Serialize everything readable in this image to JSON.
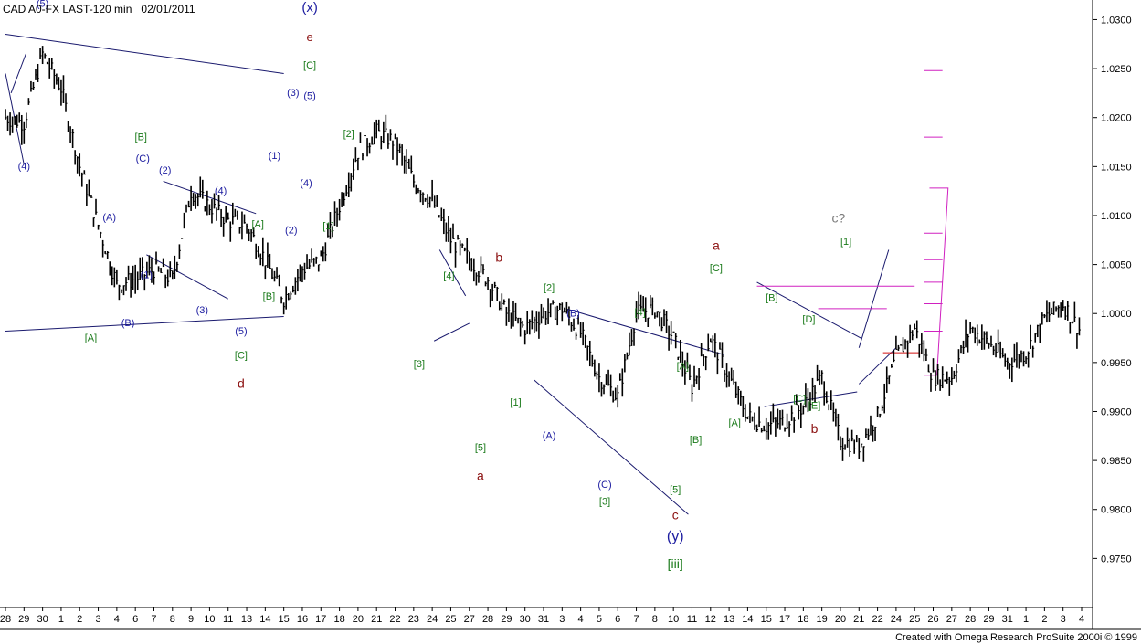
{
  "header": {
    "symbol_line": "CAD A0-FX LAST-120 min",
    "date": "02/01/2011"
  },
  "footer": {
    "credit": "Created with Omega Research ProSuite 2000i © 1999"
  },
  "colors": {
    "line": "#1a1a6e",
    "magenta": "#d020c0",
    "red": "#d01010",
    "green": "#1a7a1a",
    "blue": "#1c1ca0",
    "darkred": "#8b1010",
    "gray": "#7a7a7a",
    "price": "#000000"
  },
  "chart_data": {
    "type": "line",
    "ylim": [
      0.97,
      1.032
    ],
    "y_ticks": [
      "1.0300",
      "1.0250",
      "1.0200",
      "1.0150",
      "1.0100",
      "1.0050",
      "1.0000",
      "0.9950",
      "0.9900",
      "0.9850",
      "0.9800",
      "0.9750"
    ],
    "y_tick_values": [
      1.03,
      1.025,
      1.02,
      1.015,
      1.01,
      1.005,
      1.0,
      0.995,
      0.99,
      0.985,
      0.98,
      0.975
    ],
    "x_ticks": [
      "28",
      "29",
      "30",
      "1",
      "2",
      "3",
      "4",
      "6",
      "7",
      "8",
      "9",
      "10",
      "11",
      "13",
      "14",
      "15",
      "16",
      "17",
      "18",
      "20",
      "21",
      "22",
      "23",
      "24",
      "25",
      "27",
      "28",
      "29",
      "30",
      "31",
      "3",
      "4",
      "5",
      "6",
      "7",
      "8",
      "10",
      "11",
      "12",
      "13",
      "14",
      "15",
      "17",
      "18",
      "19",
      "20",
      "21",
      "22",
      "24",
      "25",
      "26",
      "27",
      "28",
      "29",
      "31",
      "1",
      "2",
      "3",
      "4"
    ],
    "x": [
      0,
      1,
      2,
      3,
      4,
      5,
      6,
      7,
      8,
      9,
      10,
      11,
      12,
      13,
      14,
      15,
      16,
      17,
      18,
      19,
      20,
      21,
      22,
      23,
      24,
      25,
      26,
      27,
      28,
      29,
      30,
      31,
      32,
      33,
      34,
      35,
      36,
      37,
      38,
      39,
      40,
      41,
      42,
      43,
      44,
      45,
      46,
      47,
      48,
      49,
      50,
      51,
      52,
      53,
      54,
      55,
      56,
      57,
      58
    ],
    "series": [
      {
        "name": "",
        "values": [
          1.02,
          1.0195,
          1.0265,
          1.023,
          1.015,
          1.009,
          1.003,
          1.0035,
          1.0045,
          1.0035,
          1.0125,
          1.011,
          1.0095,
          1.009,
          1.0055,
          1.0015,
          1.0045,
          1.0055,
          1.011,
          1.0165,
          1.0185,
          1.0175,
          1.0135,
          1.0115,
          1.0075,
          1.0055,
          1.0035,
          1.0,
          0.9985,
          1.0,
          1.0005,
          0.998,
          0.9935,
          0.9915,
          1.0,
          1.0005,
          0.9975,
          0.9925,
          0.9975,
          0.9935,
          0.9895,
          0.9885,
          0.989,
          0.9905,
          0.9935,
          0.987,
          0.9865,
          0.9895,
          0.9955,
          0.9985,
          0.9935,
          0.9935,
          0.9985,
          0.997,
          0.995,
          0.996,
          0.9995,
          1.001,
          0.998
        ]
      }
    ],
    "wave_labels": [
      {
        "text": "(5)",
        "x": 2.0,
        "y": 1.0313,
        "color": "blue",
        "size": 11
      },
      {
        "text": "(4)",
        "x": 1.0,
        "y": 1.0147,
        "color": "blue",
        "size": 11
      },
      {
        "text": "(x)",
        "x": 16.4,
        "y": 1.0308,
        "color": "blue",
        "size": 15
      },
      {
        "text": "e",
        "x": 16.4,
        "y": 1.0278,
        "color": "darkred",
        "size": 13
      },
      {
        "text": "[C]",
        "x": 16.4,
        "y": 1.025,
        "color": "green",
        "size": 11
      },
      {
        "text": "(3)",
        "x": 15.5,
        "y": 1.0222,
        "color": "blue",
        "size": 11
      },
      {
        "text": "(5)",
        "x": 16.4,
        "y": 1.0219,
        "color": "blue",
        "size": 11
      },
      {
        "text": "[2]",
        "x": 18.5,
        "y": 1.018,
        "color": "green",
        "size": 11
      },
      {
        "text": "(1)",
        "x": 14.5,
        "y": 1.0158,
        "color": "blue",
        "size": 11
      },
      {
        "text": "(4)",
        "x": 16.2,
        "y": 1.013,
        "color": "blue",
        "size": 11
      },
      {
        "text": "(2)",
        "x": 15.4,
        "y": 1.0082,
        "color": "blue",
        "size": 11
      },
      {
        "text": "[1]",
        "x": 17.4,
        "y": 1.0086,
        "color": "green",
        "size": 11
      },
      {
        "text": "[B]",
        "x": 7.3,
        "y": 1.0177,
        "color": "green",
        "size": 11
      },
      {
        "text": "(C)",
        "x": 7.4,
        "y": 1.0155,
        "color": "blue",
        "size": 11
      },
      {
        "text": "(2)",
        "x": 8.6,
        "y": 1.0143,
        "color": "blue",
        "size": 11
      },
      {
        "text": "(4)",
        "x": 11.6,
        "y": 1.0122,
        "color": "blue",
        "size": 11
      },
      {
        "text": "(A)",
        "x": 5.6,
        "y": 1.0095,
        "color": "blue",
        "size": 11
      },
      {
        "text": "[A]",
        "x": 13.6,
        "y": 1.0088,
        "color": "green",
        "size": 11
      },
      {
        "text": "(1)",
        "x": 7.6,
        "y": 1.0036,
        "color": "blue",
        "size": 11
      },
      {
        "text": "[B]",
        "x": 14.2,
        "y": 1.0014,
        "color": "green",
        "size": 11
      },
      {
        "text": "(3)",
        "x": 10.6,
        "y": 1.0,
        "color": "blue",
        "size": 11
      },
      {
        "text": "(B)",
        "x": 6.6,
        "y": 0.9987,
        "color": "blue",
        "size": 11
      },
      {
        "text": "[A]",
        "x": 4.6,
        "y": 0.9972,
        "color": "green",
        "size": 11
      },
      {
        "text": "(5)",
        "x": 12.7,
        "y": 0.9979,
        "color": "blue",
        "size": 11
      },
      {
        "text": "[C]",
        "x": 12.7,
        "y": 0.9954,
        "color": "green",
        "size": 11
      },
      {
        "text": "d",
        "x": 12.7,
        "y": 0.9924,
        "color": "darkred",
        "size": 14
      },
      {
        "text": "[4]",
        "x": 23.9,
        "y": 1.0035,
        "color": "green",
        "size": 11
      },
      {
        "text": "[3]",
        "x": 22.3,
        "y": 0.9945,
        "color": "green",
        "size": 11
      },
      {
        "text": "b",
        "x": 26.6,
        "y": 1.0053,
        "color": "darkred",
        "size": 14
      },
      {
        "text": "[5]",
        "x": 25.6,
        "y": 0.986,
        "color": "green",
        "size": 11
      },
      {
        "text": "a",
        "x": 25.6,
        "y": 0.983,
        "color": "darkred",
        "size": 14
      },
      {
        "text": "[2]",
        "x": 29.3,
        "y": 1.0023,
        "color": "green",
        "size": 11
      },
      {
        "text": "(B)",
        "x": 30.6,
        "y": 0.9997,
        "color": "blue",
        "size": 11
      },
      {
        "text": "[4]",
        "x": 34.2,
        "y": 0.9998,
        "color": "green",
        "size": 11
      },
      {
        "text": "[1]",
        "x": 27.5,
        "y": 0.9906,
        "color": "green",
        "size": 11
      },
      {
        "text": "(A)",
        "x": 29.3,
        "y": 0.9872,
        "color": "blue",
        "size": 11
      },
      {
        "text": "(C)",
        "x": 32.3,
        "y": 0.9822,
        "color": "blue",
        "size": 11
      },
      {
        "text": "[3]",
        "x": 32.3,
        "y": 0.9805,
        "color": "green",
        "size": 11
      },
      {
        "text": "[A]",
        "x": 36.5,
        "y": 0.9943,
        "color": "green",
        "size": 11
      },
      {
        "text": "[B]",
        "x": 37.2,
        "y": 0.9868,
        "color": "green",
        "size": 11
      },
      {
        "text": "[5]",
        "x": 36.1,
        "y": 0.9817,
        "color": "green",
        "size": 11
      },
      {
        "text": "c",
        "x": 36.1,
        "y": 0.979,
        "color": "darkred",
        "size": 14
      },
      {
        "text": "(y)",
        "x": 36.1,
        "y": 0.9768,
        "color": "blue",
        "size": 16
      },
      {
        "text": "[iii]",
        "x": 36.1,
        "y": 0.974,
        "color": "green",
        "size": 14
      },
      {
        "text": "a",
        "x": 38.3,
        "y": 1.0065,
        "color": "darkred",
        "size": 14
      },
      {
        "text": "[C]",
        "x": 38.3,
        "y": 1.0043,
        "color": "green",
        "size": 11
      },
      {
        "text": "[B]",
        "x": 41.3,
        "y": 1.0013,
        "color": "green",
        "size": 11
      },
      {
        "text": "[D]",
        "x": 43.3,
        "y": 0.9991,
        "color": "green",
        "size": 11
      },
      {
        "text": "[A]",
        "x": 39.3,
        "y": 0.9885,
        "color": "green",
        "size": 11
      },
      {
        "text": "[C]",
        "x": 42.8,
        "y": 0.991,
        "color": "green",
        "size": 11
      },
      {
        "text": "[E]",
        "x": 43.6,
        "y": 0.9903,
        "color": "green",
        "size": 11
      },
      {
        "text": "b",
        "x": 43.6,
        "y": 0.9878,
        "color": "darkred",
        "size": 14
      },
      {
        "text": "c?",
        "x": 44.9,
        "y": 1.0093,
        "color": "gray",
        "size": 14
      },
      {
        "text": "[1]",
        "x": 45.3,
        "y": 1.007,
        "color": "green",
        "size": 11
      }
    ]
  }
}
